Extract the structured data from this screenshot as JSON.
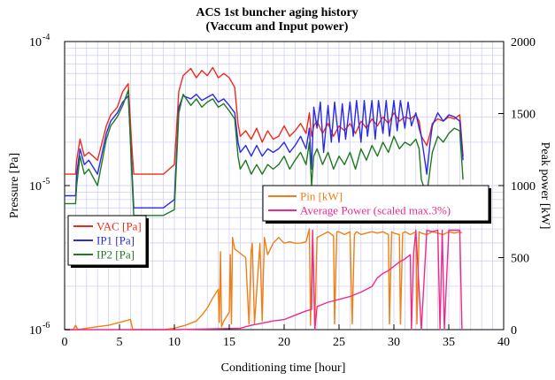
{
  "chart_data": {
    "type": "line",
    "title": "ACS 1st buncher aging history",
    "subtitle": "(Vaccum and Input power)",
    "xlabel": "Conditioning time [hour]",
    "ylabel_left": "Pressure [Pa]",
    "ylabel_right": "Peak power [kW]",
    "xlim": [
      0,
      40
    ],
    "x_ticks": [
      "0",
      "5",
      "10",
      "15",
      "20",
      "25",
      "30",
      "35",
      "40"
    ],
    "ylim_left": [
      1e-06,
      0.0001
    ],
    "y_scale_left": "log",
    "y_ticks_left": [
      {
        "base": "10",
        "exp": "-4"
      },
      {
        "base": "10",
        "exp": "-5"
      },
      {
        "base": "10",
        "exp": "-6"
      }
    ],
    "ylim_right": [
      0,
      2000
    ],
    "y_ticks_right": [
      "2000",
      "1500",
      "1000",
      "500",
      "0"
    ],
    "grid": true,
    "legends": [
      {
        "placement": "left-middle",
        "axis": "left",
        "items": [
          "VAC [Pa]",
          "IP1 [Pa]",
          "IP2 [Pa]"
        ]
      },
      {
        "placement": "right-middle",
        "axis": "right",
        "items": [
          "Pin [kW]",
          "Average Power (scaled max.3%)"
        ]
      }
    ],
    "series": [
      {
        "name": "VAC [Pa]",
        "axis": "left",
        "color": "#ee2a1a",
        "x": [
          0,
          1,
          1.1,
          1.4,
          1.8,
          2.2,
          3,
          3.8,
          4.2,
          4.8,
          5.3,
          5.8,
          6.1,
          6.3,
          6.5,
          7,
          8,
          9,
          10,
          10.4,
          10.8,
          11.5,
          12,
          12.5,
          13,
          13.5,
          14,
          14.5,
          15,
          15.5,
          15.8,
          16,
          16.5,
          17,
          17.5,
          18,
          18.5,
          19,
          19.5,
          20,
          20.5,
          21,
          21.5,
          22,
          22.3,
          22.5,
          22.7,
          23,
          23.5,
          24,
          24.5,
          25,
          25.5,
          26,
          26.5,
          27,
          27.5,
          28,
          28.5,
          29,
          29.5,
          30,
          30.5,
          31,
          31.5,
          32,
          32.3,
          32.5,
          33,
          33.3,
          33.5,
          34,
          34.5,
          35,
          35.5,
          36,
          36.3
        ],
        "y": [
          1.2e-05,
          1.2e-05,
          1.5e-05,
          2.1e-05,
          1.6e-05,
          1.7e-05,
          1.5e-05,
          2.6e-05,
          3.1e-05,
          3.5e-05,
          4.5e-05,
          5.1e-05,
          2e-05,
          1.2e-05,
          1.2e-05,
          1.2e-05,
          1.2e-05,
          1.2e-05,
          1.4e-05,
          4.5e-05,
          5.8e-05,
          6.5e-05,
          5.6e-05,
          6.3e-05,
          5.8e-05,
          6.6e-05,
          5.6e-05,
          6e-05,
          5.6e-05,
          4.8e-05,
          2.7e-05,
          2.2e-05,
          2.4e-05,
          2.1e-05,
          2.5e-05,
          2e-05,
          2.4e-05,
          2.1e-05,
          2.2e-05,
          2.6e-05,
          2.2e-05,
          2.4e-05,
          2.7e-05,
          2.3e-05,
          3.2e-05,
          2.2e-05,
          2.6e-05,
          2.8e-05,
          2.3e-05,
          2.7e-05,
          2.2e-05,
          2.6e-05,
          2.4e-05,
          2.7e-05,
          2.3e-05,
          2.8e-05,
          2.5e-05,
          2.9e-05,
          2.6e-05,
          3e-05,
          2.7e-05,
          3.2e-05,
          2.8e-05,
          3e-05,
          2.9e-05,
          3.1e-05,
          2.8e-05,
          2.2e-05,
          1.9e-05,
          2.3e-05,
          2.7e-05,
          2.9e-05,
          2.8e-05,
          3e-05,
          2.9e-05,
          3.1e-05,
          1.6e-05
        ]
      },
      {
        "name": "IP1 [Pa]",
        "axis": "left",
        "color": "#2a2ae8",
        "x": [
          0,
          1,
          1.1,
          1.4,
          1.8,
          2.2,
          3,
          3.8,
          4.2,
          4.8,
          5.3,
          5.8,
          6.1,
          6.3,
          6.5,
          7,
          8,
          9,
          10,
          10.4,
          10.8,
          11.5,
          12,
          12.5,
          13,
          13.5,
          14,
          14.5,
          15,
          15.5,
          15.8,
          16,
          16.5,
          17,
          17.5,
          18,
          18.5,
          19,
          19.5,
          20,
          20.5,
          21,
          21.5,
          22,
          22.3,
          22.5,
          22.7,
          23,
          23.3,
          23.6,
          24,
          24.3,
          24.6,
          25,
          25.3,
          25.6,
          26,
          26.3,
          26.6,
          27,
          27.3,
          27.6,
          28,
          28.3,
          28.6,
          29,
          29.3,
          29.6,
          30,
          30.3,
          30.6,
          31,
          31.3,
          31.6,
          32,
          32.3,
          32.5,
          33,
          33.3,
          33.5,
          34,
          34.5,
          35,
          35.5,
          36,
          36.3
        ],
        "y": [
          8.5e-06,
          8.5e-06,
          1.2e-05,
          1.8e-05,
          1.4e-05,
          1.5e-05,
          1.2e-05,
          2.3e-05,
          2.8e-05,
          3.2e-05,
          3.8e-05,
          4.2e-05,
          1.5e-05,
          7e-06,
          7e-06,
          7e-06,
          7e-06,
          7e-06,
          8e-06,
          3.5e-05,
          4.2e-05,
          4e-05,
          4.3e-05,
          3.9e-05,
          4.1e-05,
          4.3e-05,
          3.8e-05,
          4e-05,
          3.6e-05,
          3.2e-05,
          2e-05,
          1.7e-05,
          1.9e-05,
          1.6e-05,
          1.9e-05,
          1.6e-05,
          1.8e-05,
          1.7e-05,
          1.8e-05,
          2e-05,
          1.7e-05,
          1.9e-05,
          2.2e-05,
          1.8e-05,
          2.5e-05,
          1.3e-05,
          3.5e-05,
          2.5e-05,
          3.8e-05,
          1.7e-05,
          3.6e-05,
          2e-05,
          3.8e-05,
          2e-05,
          3.7e-05,
          2.1e-05,
          3.8e-05,
          2.2e-05,
          3.9e-05,
          2e-05,
          3.9e-05,
          2.2e-05,
          3.9e-05,
          2.1e-05,
          3.9e-05,
          2.3e-05,
          3.9e-05,
          2.2e-05,
          3.9e-05,
          2.4e-05,
          3.9e-05,
          2.5e-05,
          3.8e-05,
          2.6e-05,
          3.2e-05,
          2.5e-05,
          2.2e-05,
          1.2e-05,
          2e-05,
          2.6e-05,
          3.2e-05,
          2.8e-05,
          3.1e-05,
          3e-05,
          2.8e-05,
          1.5e-05
        ]
      },
      {
        "name": "IP2 [Pa]",
        "axis": "left",
        "color": "#1f7a1f",
        "x": [
          0,
          1,
          1.1,
          1.4,
          1.8,
          2.2,
          3,
          3.8,
          4.2,
          4.8,
          5.3,
          5.8,
          6.1,
          6.3,
          6.5,
          7,
          8,
          9,
          10,
          10.4,
          10.8,
          11.5,
          12,
          12.5,
          13,
          13.5,
          14,
          14.5,
          15,
          15.5,
          15.8,
          16,
          16.5,
          17,
          17.5,
          18,
          18.5,
          19,
          19.5,
          20,
          20.5,
          21,
          21.5,
          22,
          22.3,
          22.5,
          22.7,
          23,
          23.5,
          24,
          24.5,
          25,
          25.5,
          26,
          26.5,
          27,
          27.5,
          28,
          28.5,
          29,
          29.5,
          30,
          30.5,
          31,
          31.5,
          32,
          32.3,
          32.5,
          33,
          33.3,
          33.5,
          34,
          34.5,
          35,
          35.5,
          36,
          36.3
        ],
        "y": [
          7.5e-06,
          7.5e-06,
          1e-05,
          1.6e-05,
          1.2e-05,
          1.3e-05,
          1e-05,
          2.1e-05,
          2.6e-05,
          3e-05,
          3.6e-05,
          4.6e-05,
          1.3e-05,
          6.2e-06,
          6.2e-06,
          6.2e-06,
          6.2e-06,
          6.2e-06,
          6.8e-06,
          3.2e-05,
          4.3e-05,
          3.6e-05,
          4e-05,
          3.5e-05,
          3.8e-05,
          4e-05,
          3.5e-05,
          3.7e-05,
          3.3e-05,
          2.9e-05,
          1.6e-05,
          1.3e-05,
          1.5e-05,
          1.2e-05,
          1.4e-05,
          1.2e-05,
          1.4e-05,
          1.3e-05,
          1.4e-05,
          1.6e-05,
          1.3e-05,
          1.5e-05,
          1.7e-05,
          1.4e-05,
          2e-05,
          1e-05,
          1.6e-05,
          1.8e-05,
          1.4e-05,
          1.7e-05,
          1.3e-05,
          1.6e-05,
          1.4e-05,
          1.7e-05,
          1.3e-05,
          1.8e-05,
          1.5e-05,
          1.9e-05,
          1.6e-05,
          2e-05,
          1.7e-05,
          2.2e-05,
          1.8e-05,
          2e-05,
          1.9e-05,
          2.1e-05,
          1.8e-05,
          1.1e-05,
          8.5e-06,
          1.3e-05,
          1.7e-05,
          2.2e-05,
          2e-05,
          2.3e-05,
          2.5e-05,
          2.4e-05,
          1.1e-05
        ]
      },
      {
        "name": "Pin [kW]",
        "axis": "right",
        "color": "#f07f14",
        "x": [
          0,
          0.8,
          1.0,
          1.2,
          2,
          3,
          4,
          5,
          6,
          6.2,
          7,
          8,
          9,
          10,
          11,
          12,
          12.5,
          13,
          13.5,
          14.0,
          14.1,
          14.2,
          14.3,
          14.5,
          15.0,
          15.1,
          15.2,
          15.3,
          15.5,
          16.5,
          16.8,
          17.0,
          17.1,
          17.3,
          17.8,
          18.0,
          18.2,
          18.5,
          19,
          19.5,
          20,
          20.5,
          21,
          21.5,
          22,
          22.3,
          22.4,
          22.6,
          22.8,
          23,
          24,
          24.5,
          24.6,
          24.8,
          25,
          25.5,
          26,
          26.2,
          26.4,
          26.6,
          27,
          28,
          28.5,
          29,
          29.5,
          29.6,
          29.8,
          30,
          30.5,
          30.6,
          30.8,
          31,
          31.5,
          32,
          32.1,
          32.3,
          32.5,
          33,
          33.5,
          34,
          34.5,
          35,
          35.5,
          36,
          36.2
        ],
        "y": [
          0,
          0,
          30,
          0,
          10,
          20,
          30,
          50,
          70,
          0,
          0,
          0,
          0,
          10,
          30,
          60,
          100,
          150,
          220,
          280,
          50,
          540,
          20,
          60,
          120,
          520,
          40,
          640,
          560,
          500,
          40,
          550,
          600,
          40,
          600,
          60,
          640,
          520,
          600,
          640,
          600,
          610,
          600,
          600,
          610,
          700,
          30,
          660,
          40,
          640,
          680,
          650,
          40,
          680,
          680,
          660,
          680,
          40,
          660,
          680,
          660,
          680,
          670,
          680,
          660,
          40,
          680,
          670,
          660,
          40,
          670,
          680,
          660,
          680,
          40,
          680,
          670,
          660,
          680,
          670,
          660,
          680,
          670,
          680,
          670
        ]
      },
      {
        "name": "Average Power (scaled max.3%)",
        "axis": "right",
        "color": "#ee2a8c",
        "x": [
          0,
          10,
          12,
          14,
          16,
          17,
          18,
          19,
          20,
          21,
          22,
          22.5,
          22.6,
          22.8,
          23,
          24,
          25,
          26,
          27,
          28,
          28.5,
          29,
          29.5,
          30,
          30.5,
          31,
          31.5,
          31.6,
          31.8,
          32,
          32.5,
          33,
          33.5,
          34,
          34.2,
          34.4,
          34.6,
          35,
          35.5,
          36,
          36.2
        ],
        "y": [
          0,
          0,
          3,
          6,
          10,
          30,
          45,
          60,
          70,
          100,
          130,
          140,
          690,
          0,
          160,
          190,
          210,
          230,
          260,
          300,
          360,
          390,
          410,
          440,
          470,
          490,
          520,
          0,
          530,
          690,
          0,
          690,
          680,
          690,
          0,
          690,
          0,
          690,
          690,
          690,
          0
        ]
      }
    ]
  }
}
